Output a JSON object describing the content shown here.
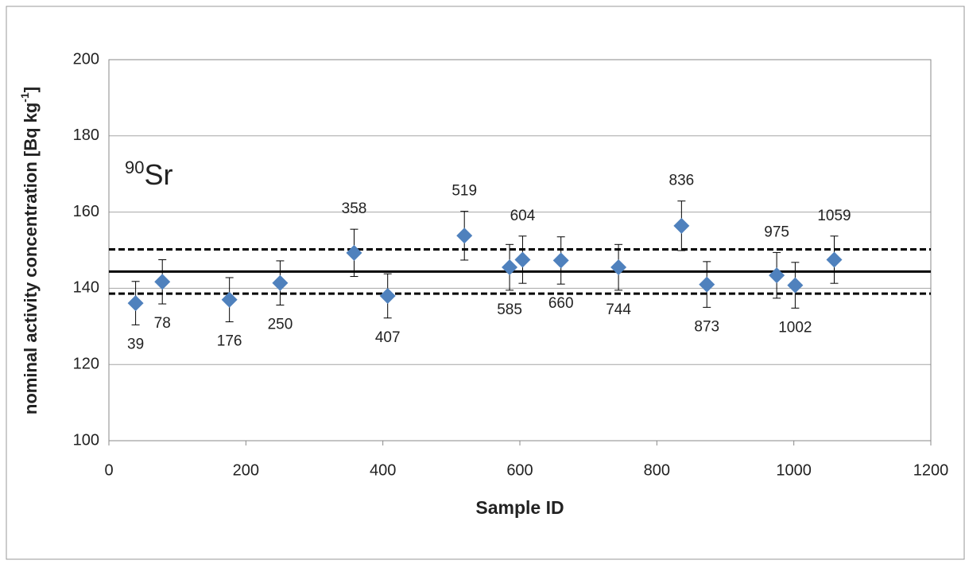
{
  "chart_data": {
    "type": "scatter",
    "xlabel": "Sample ID",
    "ylabel": {
      "main": "nominal activity concentration [Bq kg",
      "sup": "-1",
      "end": "]"
    },
    "annotation": {
      "mass": "90",
      "symbol": "Sr"
    },
    "x": [
      39,
      78,
      176,
      250,
      358,
      407,
      519,
      585,
      604,
      660,
      744,
      836,
      873,
      975,
      1002,
      1059
    ],
    "series": [
      {
        "color": "#4f81bd",
        "values": [
          136.1,
          141.7,
          137.0,
          141.4,
          149.3,
          138.0,
          153.8,
          145.5,
          147.5,
          147.3,
          145.5,
          156.4,
          141.0,
          143.4,
          140.8,
          147.5
        ],
        "errors": [
          5.7,
          5.8,
          5.8,
          5.8,
          6.2,
          5.8,
          6.4,
          6.0,
          6.2,
          6.2,
          6.0,
          6.5,
          6.0,
          6.0,
          6.0,
          6.2
        ]
      }
    ],
    "reference_lines": [
      {
        "value": 144.4,
        "style": "solid"
      },
      {
        "value": 150.2,
        "style": "dashed"
      },
      {
        "value": 138.6,
        "style": "dashed"
      }
    ],
    "xlim": [
      0,
      1200
    ],
    "xticks": [
      0,
      200,
      400,
      600,
      800,
      1000,
      1200
    ],
    "ylim": [
      100,
      200
    ],
    "yticks": [
      100,
      120,
      140,
      160,
      180,
      200
    ],
    "grid": true
  }
}
